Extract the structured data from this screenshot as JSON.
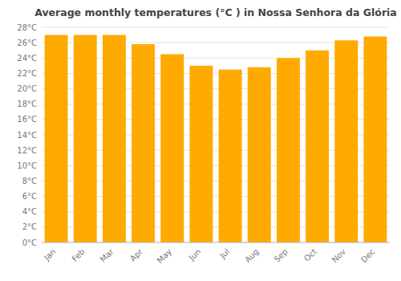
{
  "chart_data": {
    "type": "bar",
    "title": "Average monthly temperatures (°C ) in Nossa Senhora da Glória",
    "categories": [
      "Jan",
      "Feb",
      "Mar",
      "Apr",
      "May",
      "Jun",
      "Jul",
      "Aug",
      "Sep",
      "Oct",
      "Nov",
      "Dec"
    ],
    "values": [
      27.0,
      27.0,
      27.0,
      25.8,
      24.5,
      23.0,
      22.5,
      22.8,
      24.0,
      25.0,
      26.3,
      26.8
    ],
    "color": "#FFAA00",
    "ylim": [
      0,
      28
    ],
    "yticks": [
      {
        "value": 0,
        "label": "0°C"
      },
      {
        "value": 2,
        "label": "2°C"
      },
      {
        "value": 4,
        "label": "4°C"
      },
      {
        "value": 6,
        "label": "6°C"
      },
      {
        "value": 8,
        "label": "8°C"
      },
      {
        "value": 10,
        "label": "10°C"
      },
      {
        "value": 12,
        "label": "12°C"
      },
      {
        "value": 14,
        "label": "14°C"
      },
      {
        "value": 16,
        "label": "16°C"
      },
      {
        "value": 18,
        "label": "18°C"
      },
      {
        "value": 20,
        "label": "20°C"
      },
      {
        "value": 22,
        "label": "22°C"
      },
      {
        "value": 24,
        "label": "24°C"
      },
      {
        "value": 26,
        "label": "26°C"
      },
      {
        "value": 28,
        "label": "28°C"
      }
    ],
    "grid": true
  }
}
